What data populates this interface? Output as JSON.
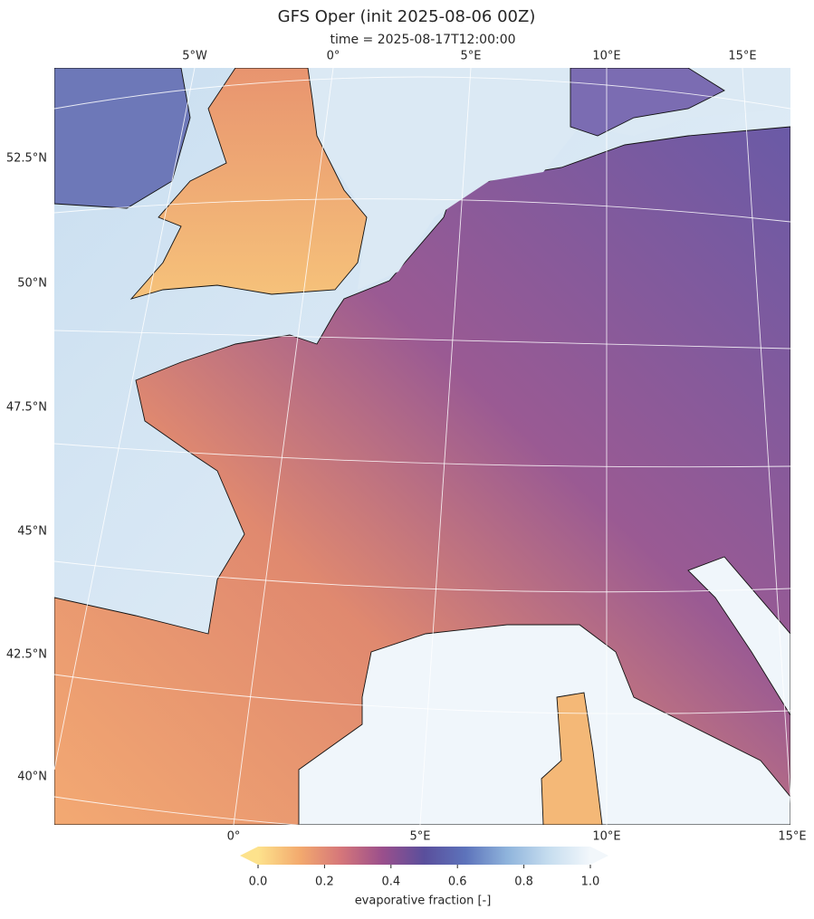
{
  "title": "GFS Oper (init 2025-08-06 00Z)",
  "subtitle": "time = 2025-08-17T12:00:00",
  "map": {
    "top_labels": [
      "5°W",
      "0°",
      "5°E",
      "10°E",
      "15°E"
    ],
    "left_labels": [
      "52.5°N",
      "50°N",
      "47.5°N",
      "45°N",
      "42.5°N",
      "40°N"
    ],
    "bottom_labels": [
      "0°",
      "5°E",
      "10°E",
      "15°E"
    ]
  },
  "colorbar": {
    "label": "evaporative fraction [-]",
    "lim": [
      0,
      1
    ],
    "ticks": [
      {
        "value": 0,
        "label": "0.0"
      },
      0.2,
      0.4,
      0.6,
      0.8,
      {
        "value": 1,
        "label": "1.0"
      }
    ],
    "colors": [
      "#fde28c",
      "#f3aa6e",
      "#d5767a",
      "#9a4f8c",
      "#5a4f9c",
      "#5d73bb",
      "#8fb4dc",
      "#c6ddef",
      "#f2f7fb"
    ]
  }
}
